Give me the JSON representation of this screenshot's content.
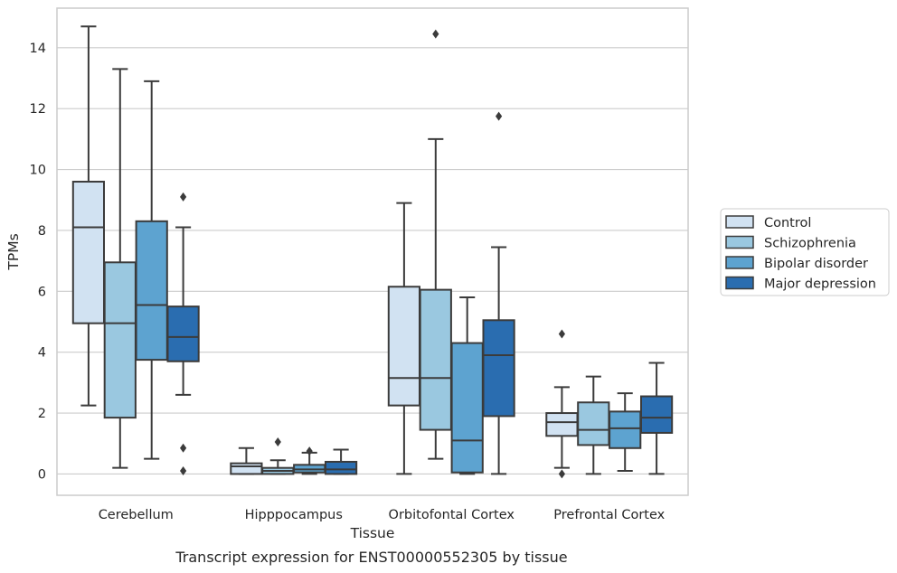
{
  "chart_data": {
    "type": "box",
    "title": "",
    "caption": "Transcript expression for ENST00000552305 by tissue",
    "xlabel": "Tissue",
    "ylabel": "TPMs",
    "ylim": [
      -0.7,
      15.3
    ],
    "yticks": [
      0,
      2,
      4,
      6,
      8,
      10,
      12,
      14
    ],
    "grid": "horizontal",
    "legend_position": "right",
    "categories": [
      "Cerebellum",
      "Hipppocampus",
      "Orbitofontal Cortex",
      "Prefrontal Cortex"
    ],
    "series": [
      {
        "name": "Control",
        "color": "#d1e2f2",
        "boxes": [
          {
            "whislo": 2.25,
            "q1": 4.95,
            "med": 8.1,
            "q3": 9.6,
            "whishi": 14.7,
            "fliers": []
          },
          {
            "whislo": 0.0,
            "q1": 0.0,
            "med": 0.25,
            "q3": 0.35,
            "whishi": 0.85,
            "fliers": []
          },
          {
            "whislo": 0.0,
            "q1": 2.25,
            "med": 3.15,
            "q3": 6.15,
            "whishi": 8.9,
            "fliers": []
          },
          {
            "whislo": 0.2,
            "q1": 1.25,
            "med": 1.7,
            "q3": 2.0,
            "whishi": 2.85,
            "fliers": [
              0.0,
              4.6
            ]
          }
        ]
      },
      {
        "name": "Schizophrenia",
        "color": "#9ac8e0",
        "boxes": [
          {
            "whislo": 0.2,
            "q1": 1.85,
            "med": 4.95,
            "q3": 6.95,
            "whishi": 13.3,
            "fliers": []
          },
          {
            "whislo": 0.0,
            "q1": 0.0,
            "med": 0.1,
            "q3": 0.2,
            "whishi": 0.45,
            "fliers": [
              1.05
            ]
          },
          {
            "whislo": 0.5,
            "q1": 1.45,
            "med": 3.15,
            "q3": 6.05,
            "whishi": 11.0,
            "fliers": [
              14.45
            ]
          },
          {
            "whislo": 0.0,
            "q1": 0.95,
            "med": 1.45,
            "q3": 2.35,
            "whishi": 3.2,
            "fliers": []
          }
        ]
      },
      {
        "name": "Bipolar disorder",
        "color": "#5da3d0",
        "boxes": [
          {
            "whislo": 0.5,
            "q1": 3.75,
            "med": 5.55,
            "q3": 8.3,
            "whishi": 12.9,
            "fliers": []
          },
          {
            "whislo": 0.0,
            "q1": 0.05,
            "med": 0.15,
            "q3": 0.3,
            "whishi": 0.7,
            "fliers": [
              0.75
            ]
          },
          {
            "whislo": 0.0,
            "q1": 0.05,
            "med": 1.1,
            "q3": 4.3,
            "whishi": 5.8,
            "fliers": []
          },
          {
            "whislo": 0.1,
            "q1": 0.85,
            "med": 1.5,
            "q3": 2.05,
            "whishi": 2.65,
            "fliers": []
          }
        ]
      },
      {
        "name": "Major depression",
        "color": "#2a6db0",
        "boxes": [
          {
            "whislo": 2.6,
            "q1": 3.7,
            "med": 4.5,
            "q3": 5.5,
            "whishi": 8.1,
            "fliers": [
              9.1,
              0.85,
              0.1
            ]
          },
          {
            "whislo": 0.0,
            "q1": 0.0,
            "med": 0.15,
            "q3": 0.4,
            "whishi": 0.8,
            "fliers": []
          },
          {
            "whislo": 0.0,
            "q1": 1.9,
            "med": 3.9,
            "q3": 5.05,
            "whishi": 7.45,
            "fliers": [
              11.75
            ]
          },
          {
            "whislo": 0.0,
            "q1": 1.35,
            "med": 1.85,
            "q3": 2.55,
            "whishi": 3.65,
            "fliers": []
          }
        ]
      }
    ]
  }
}
